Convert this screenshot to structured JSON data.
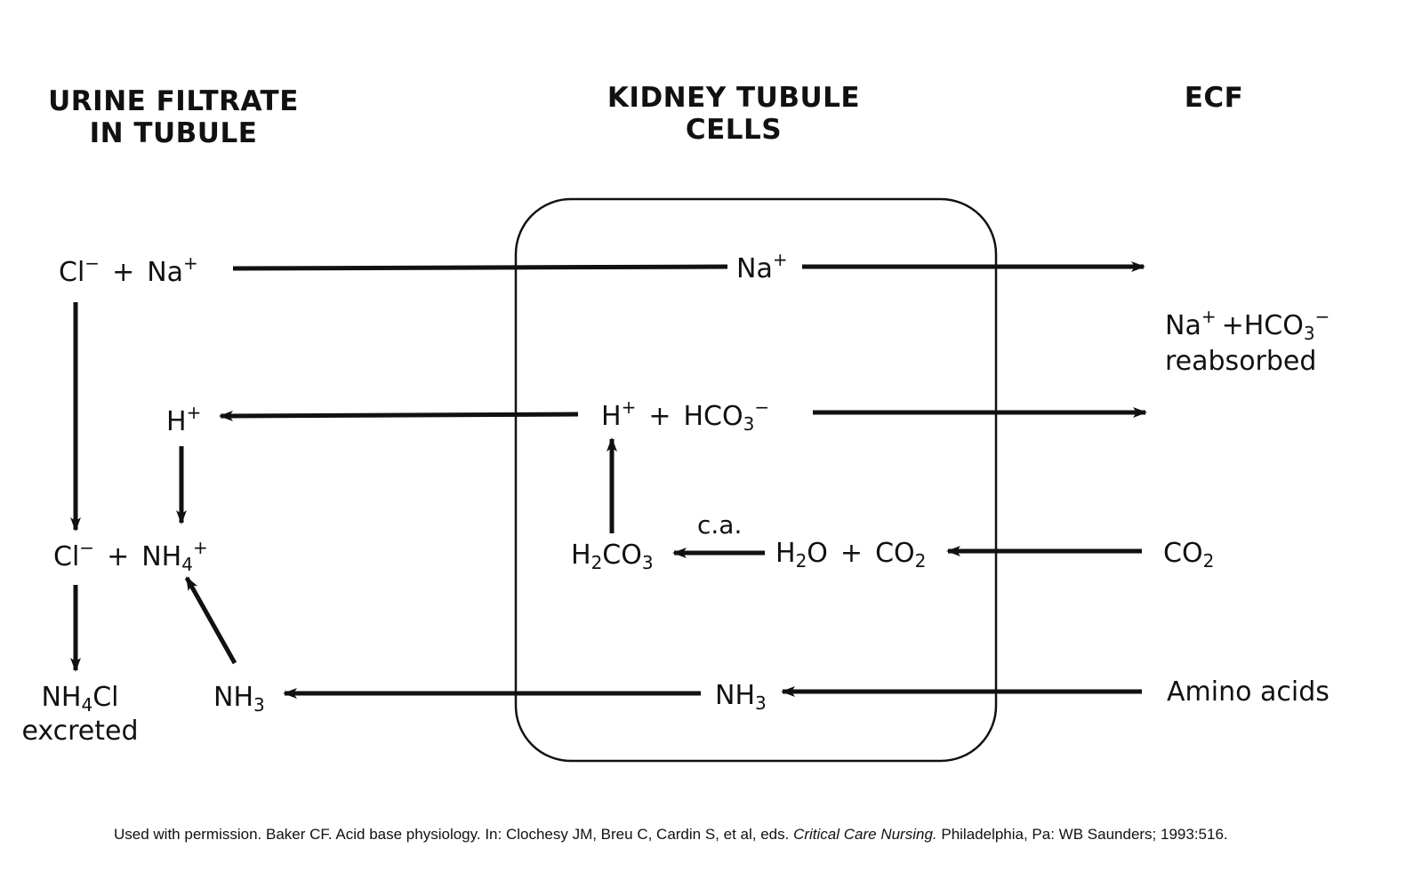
{
  "headers": {
    "urine_filtrate": [
      "URINE FILTRATE",
      "IN TUBULE"
    ],
    "kidney_tubule": [
      "KIDNEY TUBULE",
      "CELLS"
    ],
    "ecf": "ECF"
  },
  "nodes": {
    "cl_left": "Cl",
    "cl_left_sup": "−",
    "plus_1": "+",
    "na_left": "Na",
    "na_left_sup": "+",
    "na_cell": "Na",
    "na_cell_sup": "+",
    "na_ecf": "Na",
    "na_ecf_sup": "+",
    "plus_ecf": "+",
    "hco3_ecf": "HCO",
    "hco3_ecf_sub": "3",
    "hco3_ecf_sup": "−",
    "reabsorbed": "reabsorbed",
    "h_urine": "H",
    "h_urine_sup": "+",
    "h_cell": "H",
    "h_cell_sup": "+",
    "plus_cell": "+",
    "hco3_cell": "HCO",
    "hco3_cell_sub": "3",
    "hco3_cell_sup": "−",
    "cl_bottom": "Cl",
    "cl_bottom_sup": "−",
    "plus_2": "+",
    "nh4": "NH",
    "nh4_sub": "4",
    "nh4_sup": "+",
    "h2co3_a": "H",
    "h2co3_sub2": "2",
    "h2co3_b": "CO",
    "h2co3_sub3": "3",
    "ca": "c.a.",
    "h2o_a": "H",
    "h2o_sub": "2",
    "h2o_b": "O",
    "plus_3": "+",
    "co2_cell": "CO",
    "co2_cell_sub": "2",
    "co2_ecf": "CO",
    "co2_ecf_sub": "2",
    "nh4cl_a": "NH",
    "nh4cl_sub": "4",
    "nh4cl_b": "Cl",
    "excreted": "excreted",
    "nh3_urine": "NH",
    "nh3_urine_sub": "3",
    "nh3_cell": "NH",
    "nh3_cell_sub": "3",
    "amino_acids": "Amino acids"
  },
  "citation": {
    "before": "Used with permission. Baker CF. Acid base physiology. In: Clochesy JM, Breu C, Cardin S, et al, eds.",
    "italic": "Critical Care Nursing.",
    "after": "Philadelphia, Pa: WB Saunders; 1993:516."
  },
  "colors": {
    "ink": "#111111",
    "background": "#ffffff"
  }
}
